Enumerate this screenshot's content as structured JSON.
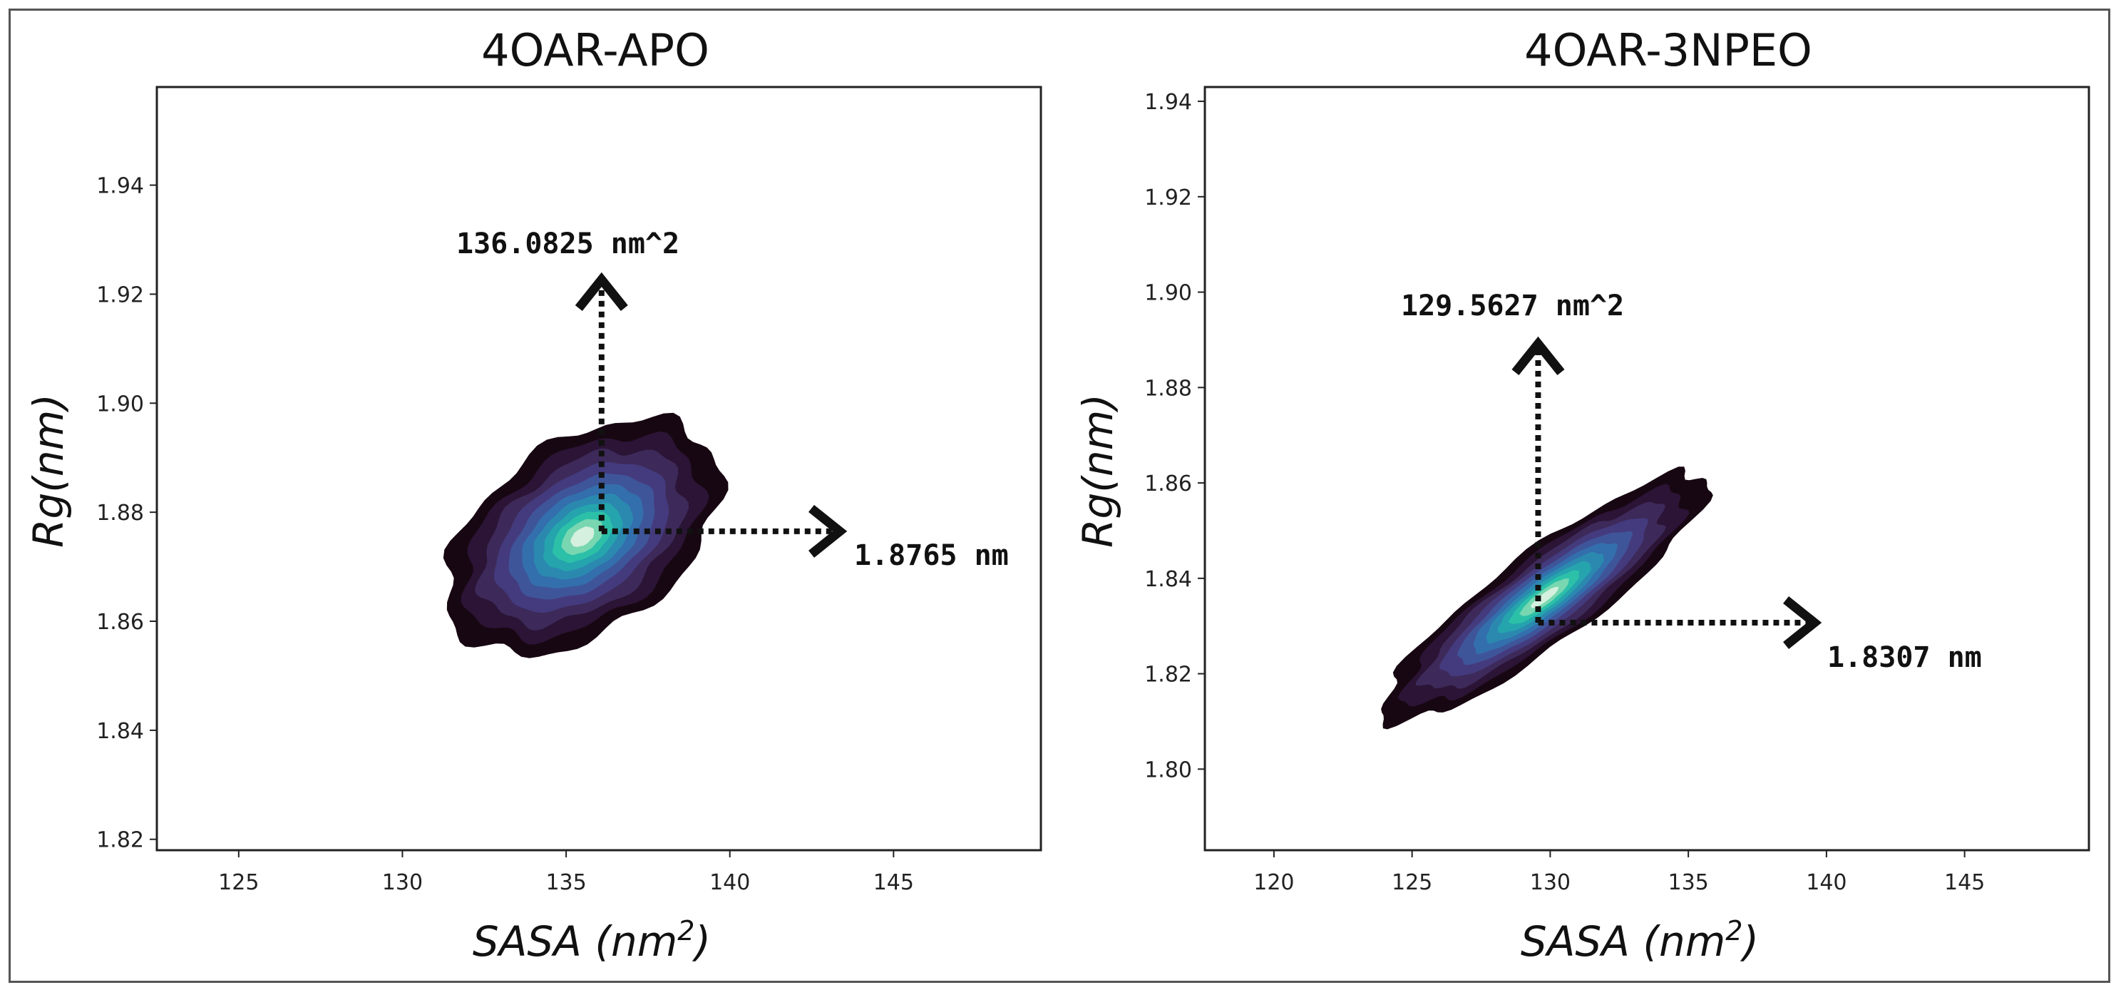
{
  "colors": {
    "levels": [
      "#170712",
      "#2b1435",
      "#3d2a5a",
      "#443b7e",
      "#3f559a",
      "#336fac",
      "#2b89b0",
      "#25a4ad",
      "#2cc0a9",
      "#78d7b1",
      "#d5f0de"
    ]
  },
  "chart_data": [
    {
      "type": "kde-contour",
      "title": "4OAR-APO",
      "xlabel_main": "SASA (nm",
      "xlabel_sup": "2",
      "xlabel_end": ")",
      "ylabel": "Rg(nm)",
      "xlim": [
        122.5,
        149.5
      ],
      "ylim": [
        1.818,
        1.958
      ],
      "xticks": [
        125,
        130,
        135,
        140,
        145
      ],
      "yticks": [
        1.82,
        1.84,
        1.86,
        1.88,
        1.9,
        1.92,
        1.94
      ],
      "center": {
        "x": 135.5,
        "y": 1.8755
      },
      "x_spread": 4.2,
      "y_spread": 0.0195,
      "tilt": 0.00225,
      "peak": {
        "sasa": 136.0825,
        "rg": 1.8765
      },
      "annotation_sasa": "136.0825 nm^2",
      "annotation_rg": "1.8765 nm"
    },
    {
      "type": "kde-contour",
      "title": "4OAR-3NPEO",
      "xlabel_main": "SASA (nm",
      "xlabel_sup": "2",
      "xlabel_end": ")",
      "ylabel": "Rg(nm)",
      "xlim": [
        117.5,
        149.5
      ],
      "ylim": [
        1.783,
        1.943
      ],
      "xticks": [
        120,
        125,
        130,
        135,
        140,
        145
      ],
      "yticks": [
        1.8,
        1.82,
        1.84,
        1.86,
        1.88,
        1.9,
        1.92,
        1.94
      ],
      "center": {
        "x": 129.8,
        "y": 1.836
      },
      "x_spread": 5.9,
      "y_spread": 0.012,
      "tilt": 0.00395,
      "peak": {
        "sasa": 129.5627,
        "rg": 1.8307
      },
      "annotation_sasa": "129.5627 nm^2",
      "annotation_rg": "1.8307 nm"
    }
  ]
}
